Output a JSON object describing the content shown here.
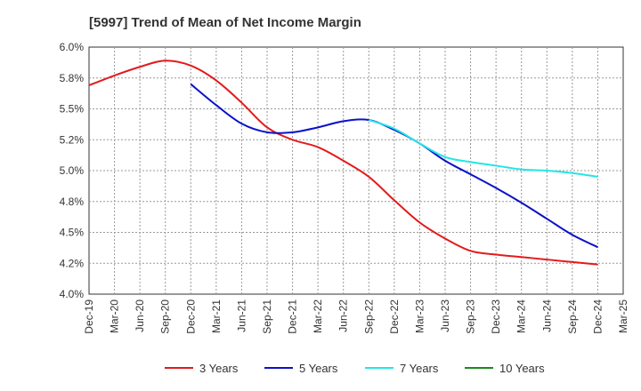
{
  "chart_data": {
    "type": "line",
    "title": "[5997]  Trend of Mean of Net Income Margin",
    "xlabel": "",
    "ylabel": "",
    "x_ticks": [
      "Dec-19",
      "Mar-20",
      "Jun-20",
      "Sep-20",
      "Dec-20",
      "Mar-21",
      "Jun-21",
      "Sep-21",
      "Dec-21",
      "Mar-22",
      "Jun-22",
      "Sep-22",
      "Dec-22",
      "Mar-23",
      "Jun-23",
      "Sep-23",
      "Dec-23",
      "Mar-24",
      "Jun-24",
      "Sep-24",
      "Dec-24",
      "Mar-25"
    ],
    "y_ticks": [
      "6.0%",
      "5.8%",
      "5.5%",
      "5.2%",
      "5.0%",
      "4.8%",
      "4.5%",
      "4.2%",
      "4.0%"
    ],
    "ylim": [
      4.0,
      6.0
    ],
    "grid": true,
    "legend_position": "bottom",
    "series": [
      {
        "name": "3 Years",
        "color": "#e31a1c",
        "x": [
          "Dec-19",
          "Mar-20",
          "Jun-20",
          "Sep-20",
          "Dec-20",
          "Mar-21",
          "Jun-21",
          "Sep-21",
          "Dec-21",
          "Mar-22",
          "Jun-22",
          "Sep-22",
          "Dec-22",
          "Mar-23",
          "Jun-23",
          "Sep-23",
          "Dec-23",
          "Mar-24",
          "Jun-24",
          "Sep-24",
          "Dec-24"
        ],
        "values": [
          5.69,
          5.77,
          5.84,
          5.89,
          5.85,
          5.73,
          5.55,
          5.35,
          5.25,
          5.19,
          5.08,
          4.95,
          4.76,
          4.58,
          4.45,
          4.35,
          4.32,
          4.3,
          4.28,
          4.26,
          4.24
        ]
      },
      {
        "name": "5 Years",
        "color": "#0a12c7",
        "x": [
          "Dec-20",
          "Mar-21",
          "Jun-21",
          "Sep-21",
          "Dec-21",
          "Mar-22",
          "Jun-22",
          "Sep-22",
          "Dec-22",
          "Mar-23",
          "Jun-23",
          "Sep-23",
          "Dec-23",
          "Mar-24",
          "Jun-24",
          "Sep-24",
          "Dec-24"
        ],
        "values": [
          5.7,
          5.53,
          5.38,
          5.31,
          5.31,
          5.35,
          5.4,
          5.41,
          5.33,
          5.22,
          5.08,
          4.97,
          4.86,
          4.74,
          4.61,
          4.48,
          4.38
        ]
      },
      {
        "name": "7 Years",
        "color": "#22e6e6",
        "x": [
          "Sep-22",
          "Dec-22",
          "Mar-23",
          "Jun-23",
          "Sep-23",
          "Dec-23",
          "Mar-24",
          "Jun-24",
          "Sep-24",
          "Dec-24"
        ],
        "values": [
          5.41,
          5.34,
          5.22,
          5.11,
          5.07,
          5.04,
          5.01,
          5.0,
          4.98,
          4.95
        ]
      },
      {
        "name": "10 Years",
        "color": "#1a8a1a",
        "x": [],
        "values": []
      }
    ]
  }
}
